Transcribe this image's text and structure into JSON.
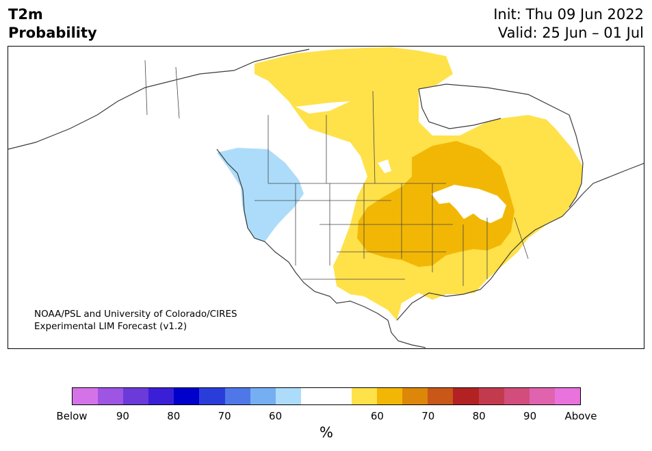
{
  "title": {
    "left": "T2m\nProbability",
    "right": "Init: Thu 09 Jun 2022\nValid: 25 Jun – 01 Jul"
  },
  "map": {
    "credit": "NOAA/PSL and University of Colorado/CIRES\nExperimental LIM Forecast (v1.2)"
  },
  "colorbar": {
    "unit": "%",
    "colors": [
      "#d473e8",
      "#9e55e3",
      "#6b3ad9",
      "#3a1fd6",
      "#0000cc",
      "#2a3ddb",
      "#4f77e8",
      "#76aef2",
      "#acdcfa",
      "#ffffff",
      "#ffffff",
      "#ffe14a",
      "#f2b705",
      "#dd870a",
      "#c95717",
      "#b22222",
      "#c23a4e",
      "#d24d7c",
      "#e063ae",
      "#e873dc"
    ],
    "tick_labels": [
      "Below",
      "90",
      "80",
      "70",
      "60",
      "60",
      "70",
      "80",
      "90",
      "Above"
    ]
  }
}
